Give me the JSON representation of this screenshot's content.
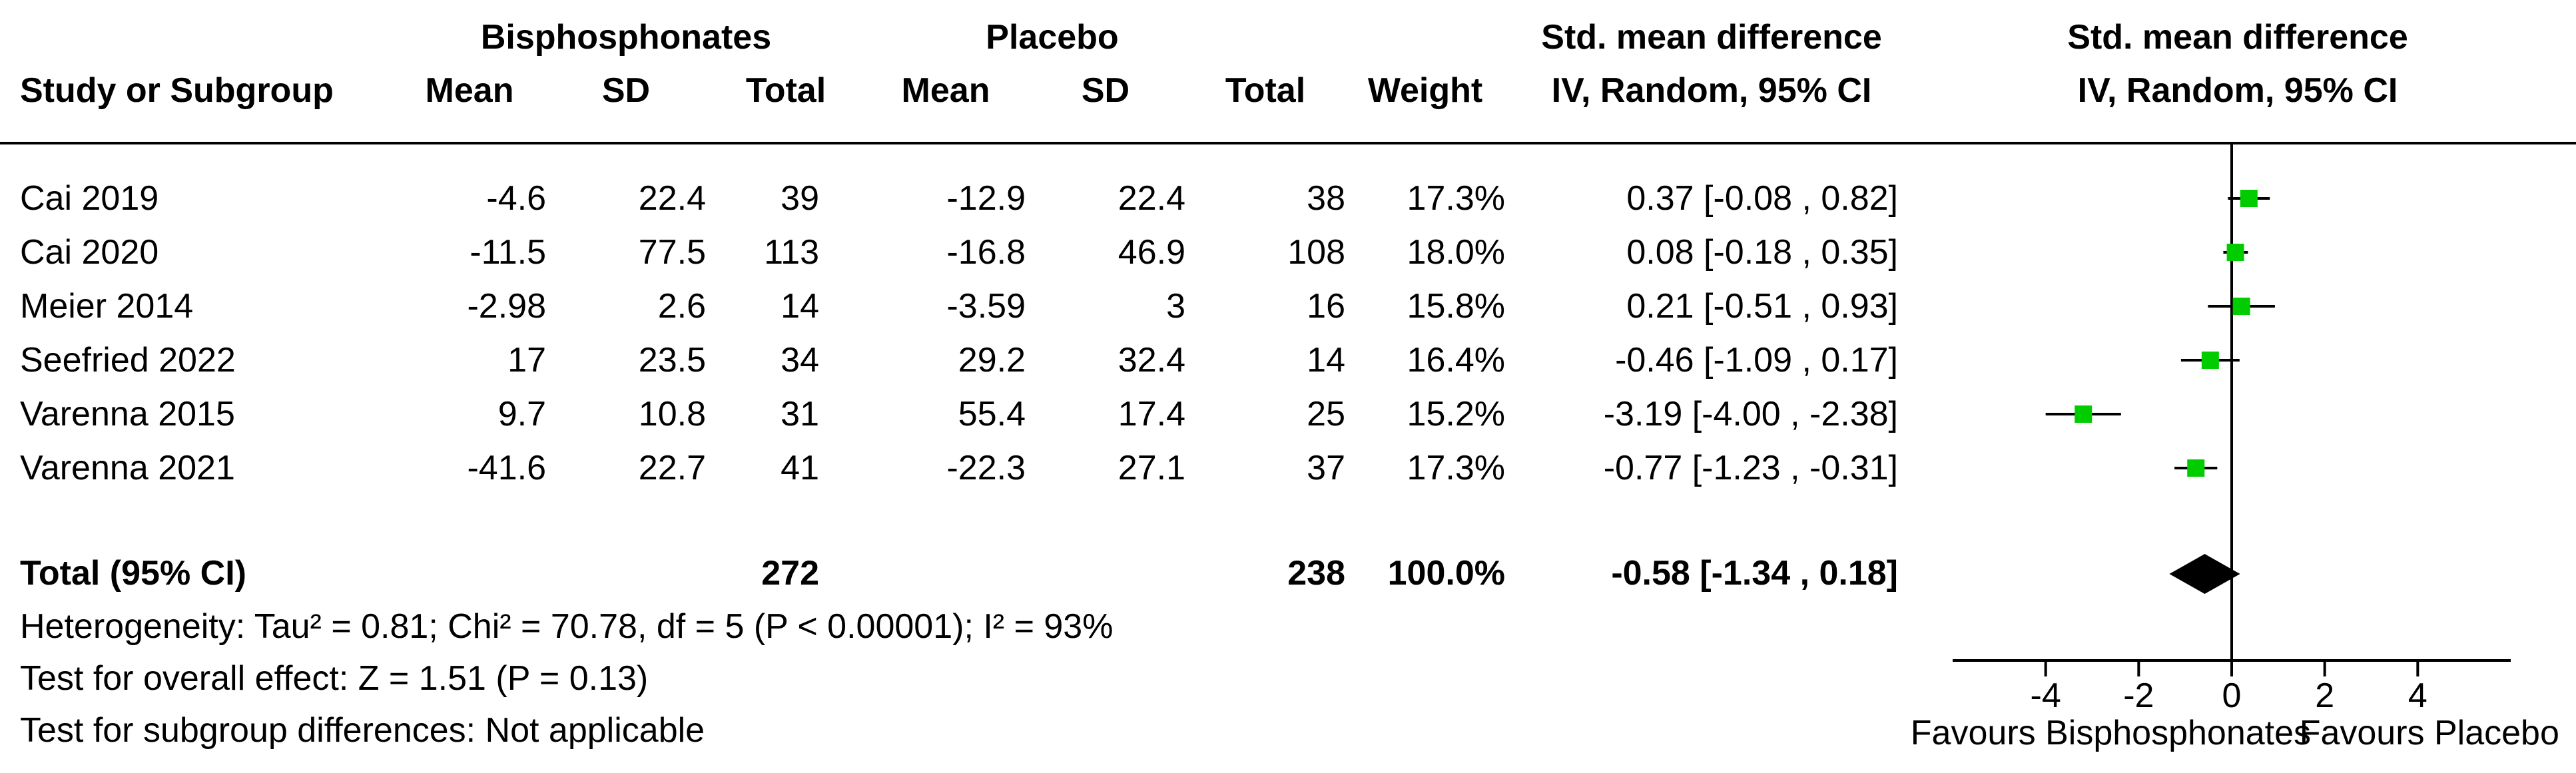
{
  "headers": {
    "group1": "Bisphosphonates",
    "group2": "Placebo",
    "effect_line1": "Std. mean difference",
    "effect_line2": "IV, Random, 95% CI",
    "plot_line1": "Std. mean difference",
    "plot_line2": "IV, Random, 95% CI",
    "study_col": "Study or Subgroup",
    "mean1": "Mean",
    "sd1": "SD",
    "total1": "Total",
    "mean2": "Mean",
    "sd2": "SD",
    "total2": "Total",
    "weight": "Weight"
  },
  "studies": [
    {
      "name": "Cai 2019",
      "mean1": "-4.6",
      "sd1": "22.4",
      "total1": "39",
      "mean2": "-12.9",
      "sd2": "22.4",
      "total2": "38",
      "weight": "17.3%",
      "ci": "0.37 [-0.08 , 0.82]"
    },
    {
      "name": "Cai 2020",
      "mean1": "-11.5",
      "sd1": "77.5",
      "total1": "113",
      "mean2": "-16.8",
      "sd2": "46.9",
      "total2": "108",
      "weight": "18.0%",
      "ci": "0.08 [-0.18 , 0.35]"
    },
    {
      "name": "Meier 2014",
      "mean1": "-2.98",
      "sd1": "2.6",
      "total1": "14",
      "mean2": "-3.59",
      "sd2": "3",
      "total2": "16",
      "weight": "15.8%",
      "ci": "0.21 [-0.51 , 0.93]"
    },
    {
      "name": "Seefried 2022",
      "mean1": "17",
      "sd1": "23.5",
      "total1": "34",
      "mean2": "29.2",
      "sd2": "32.4",
      "total2": "14",
      "weight": "16.4%",
      "ci": "-0.46 [-1.09 , 0.17]"
    },
    {
      "name": "Varenna 2015",
      "mean1": "9.7",
      "sd1": "10.8",
      "total1": "31",
      "mean2": "55.4",
      "sd2": "17.4",
      "total2": "25",
      "weight": "15.2%",
      "ci": "-3.19 [-4.00 , -2.38]"
    },
    {
      "name": "Varenna 2021",
      "mean1": "-41.6",
      "sd1": "22.7",
      "total1": "41",
      "mean2": "-22.3",
      "sd2": "27.1",
      "total2": "37",
      "weight": "17.3%",
      "ci": "-0.77 [-1.23 , -0.31]"
    }
  ],
  "total": {
    "label": "Total (95% CI)",
    "total1": "272",
    "total2": "238",
    "weight": "100.0%",
    "ci": "-0.58 [-1.34 , 0.18]"
  },
  "footer": {
    "heterogeneity": "Heterogeneity: Tau² = 0.81; Chi² = 70.78, df = 5 (P < 0.00001); I² = 93%",
    "overall": "Test for overall effect: Z = 1.51 (P = 0.13)",
    "subgroup": "Test for subgroup differences: Not applicable"
  },
  "colors": {
    "marker": "#00cc00",
    "diamond": "#000000"
  },
  "chart_data": {
    "type": "forest",
    "xlim": [
      -6,
      6
    ],
    "ticks": [
      -4,
      -2,
      0,
      2,
      4
    ],
    "tick_labels": [
      "-4",
      "-2",
      "0",
      "2",
      "4"
    ],
    "favours_left": "Favours Bisphosphonates",
    "favours_right": "Favours Placebo",
    "series": [
      {
        "name": "Cai 2019",
        "estimate": 0.37,
        "lower": -0.08,
        "upper": 0.82,
        "weight": 17.3
      },
      {
        "name": "Cai 2020",
        "estimate": 0.08,
        "lower": -0.18,
        "upper": 0.35,
        "weight": 18.0
      },
      {
        "name": "Meier 2014",
        "estimate": 0.21,
        "lower": -0.51,
        "upper": 0.93,
        "weight": 15.8
      },
      {
        "name": "Seefried 2022",
        "estimate": -0.46,
        "lower": -1.09,
        "upper": 0.17,
        "weight": 16.4
      },
      {
        "name": "Varenna 2015",
        "estimate": -3.19,
        "lower": -4.0,
        "upper": -2.38,
        "weight": 15.2
      },
      {
        "name": "Varenna 2021",
        "estimate": -0.77,
        "lower": -1.23,
        "upper": -0.31,
        "weight": 17.3
      }
    ],
    "pooled": {
      "estimate": -0.58,
      "lower": -1.34,
      "upper": 0.18
    }
  }
}
